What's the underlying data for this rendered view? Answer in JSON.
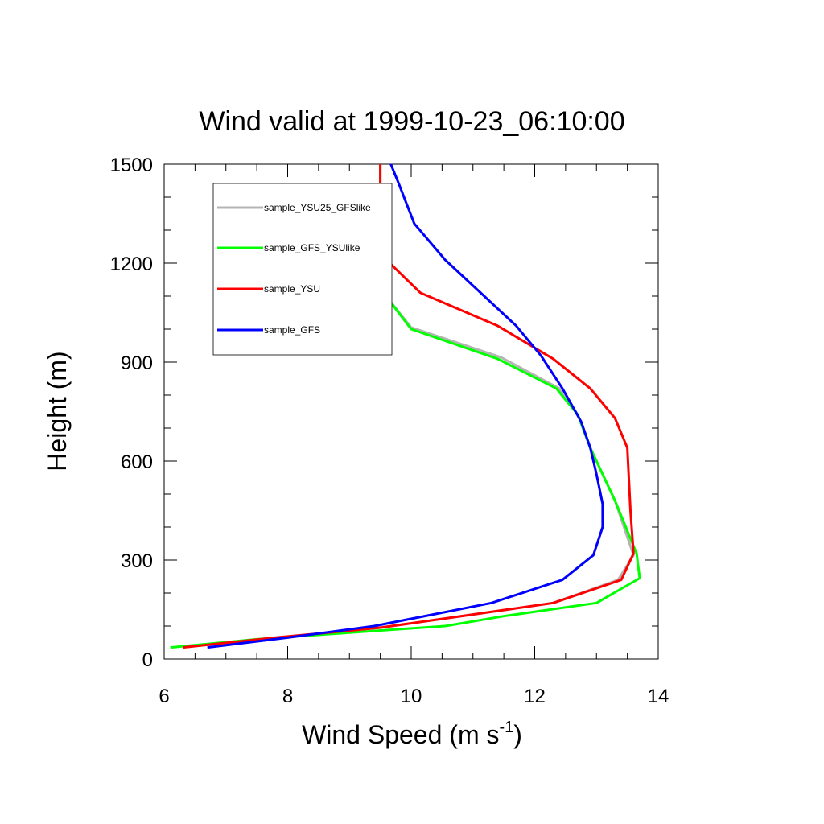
{
  "chart_data": {
    "type": "line",
    "title": "Wind valid at 1999-10-23_06:10:00",
    "xlabel": "Wind Speed (m s",
    "xlabel_exponent": "-1",
    "xlabel_close": ")",
    "ylabel": "Height (m)",
    "xlim": [
      6,
      14
    ],
    "ylim": [
      0,
      1500
    ],
    "xticks": [
      "6",
      "8",
      "10",
      "12",
      "14"
    ],
    "yticks": [
      "0",
      "300",
      "600",
      "900",
      "1200",
      "1500"
    ],
    "xtick_values": [
      6,
      8,
      10,
      12,
      14
    ],
    "ytick_values": [
      0,
      300,
      600,
      900,
      1200,
      1500
    ],
    "legend_position": "top-left",
    "series": [
      {
        "name": "sample_YSU25_GFSlike",
        "color": "#b4b4b4",
        "points": [
          [
            6.3,
            35
          ],
          [
            7.8,
            65
          ],
          [
            9.5,
            95
          ],
          [
            11.0,
            135
          ],
          [
            12.3,
            170
          ],
          [
            13.35,
            240
          ],
          [
            13.6,
            315
          ],
          [
            13.3,
            480
          ],
          [
            12.9,
            640
          ],
          [
            12.7,
            740
          ],
          [
            12.4,
            820
          ],
          [
            11.45,
            915
          ],
          [
            10.0,
            1005
          ],
          [
            9.55,
            1110
          ],
          [
            9.5,
            1210
          ],
          [
            9.5,
            1310
          ],
          [
            9.5,
            1400
          ],
          [
            9.5,
            1500
          ]
        ]
      },
      {
        "name": "sample_GFS_YSUlike",
        "color": "#00ff00",
        "points": [
          [
            6.1,
            35
          ],
          [
            7.5,
            60
          ],
          [
            9.0,
            80
          ],
          [
            10.55,
            100
          ],
          [
            11.5,
            130
          ],
          [
            13.0,
            170
          ],
          [
            13.7,
            245
          ],
          [
            13.65,
            320
          ],
          [
            13.3,
            480
          ],
          [
            12.9,
            640
          ],
          [
            12.7,
            740
          ],
          [
            12.35,
            820
          ],
          [
            11.4,
            910
          ],
          [
            10.0,
            1000
          ],
          [
            9.55,
            1110
          ],
          [
            9.5,
            1210
          ],
          [
            9.5,
            1310
          ],
          [
            9.5,
            1400
          ],
          [
            9.5,
            1500
          ]
        ]
      },
      {
        "name": "sample_YSU",
        "color": "#ff0000",
        "points": [
          [
            6.3,
            35
          ],
          [
            7.8,
            65
          ],
          [
            9.5,
            95
          ],
          [
            11.0,
            135
          ],
          [
            12.3,
            170
          ],
          [
            13.4,
            240
          ],
          [
            13.6,
            320
          ],
          [
            13.55,
            450
          ],
          [
            13.5,
            640
          ],
          [
            13.3,
            730
          ],
          [
            12.9,
            820
          ],
          [
            12.3,
            910
          ],
          [
            11.4,
            1010
          ],
          [
            10.15,
            1110
          ],
          [
            9.6,
            1210
          ],
          [
            9.5,
            1310
          ],
          [
            9.5,
            1400
          ],
          [
            9.5,
            1500
          ]
        ]
      },
      {
        "name": "sample_GFS",
        "color": "#0000ff",
        "points": [
          [
            6.7,
            35
          ],
          [
            8.0,
            65
          ],
          [
            9.4,
            100
          ],
          [
            11.3,
            170
          ],
          [
            12.45,
            240
          ],
          [
            12.95,
            315
          ],
          [
            13.1,
            400
          ],
          [
            13.1,
            470
          ],
          [
            13.0,
            560
          ],
          [
            12.9,
            640
          ],
          [
            12.75,
            720
          ],
          [
            12.45,
            820
          ],
          [
            12.1,
            920
          ],
          [
            11.7,
            1010
          ],
          [
            10.55,
            1210
          ],
          [
            10.05,
            1320
          ],
          [
            9.8,
            1440
          ],
          [
            9.67,
            1500
          ]
        ]
      }
    ]
  }
}
